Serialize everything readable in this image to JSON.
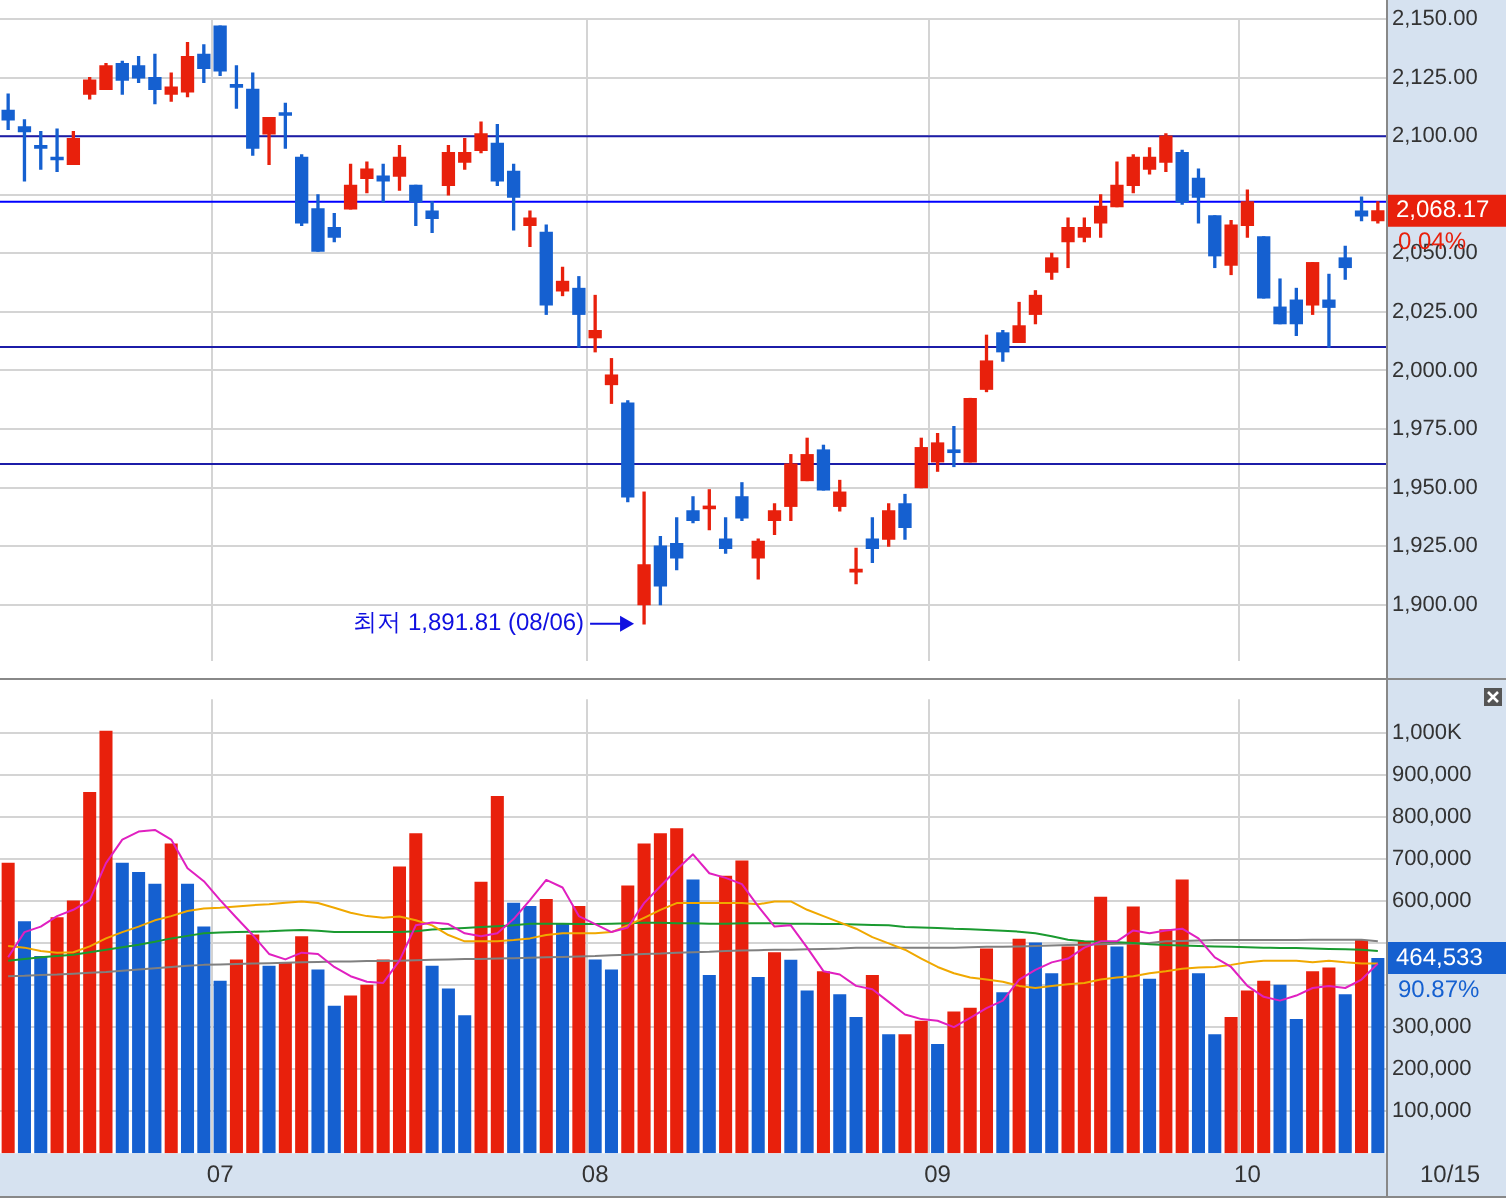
{
  "chart_data": [
    {
      "type": "candlestick",
      "tick_labels": "y",
      "grid": true,
      "categories": [
        null,
        null,
        null,
        null,
        null,
        null,
        null,
        null,
        null,
        null,
        null,
        null,
        null,
        "07",
        null,
        null,
        null,
        null,
        null,
        null,
        null,
        null,
        null,
        null,
        null,
        null,
        null,
        null,
        null,
        null,
        null,
        null,
        null,
        null,
        null,
        null,
        "08",
        null,
        null,
        null,
        null,
        null,
        null,
        null,
        null,
        null,
        null,
        null,
        null,
        null,
        null,
        null,
        null,
        null,
        null,
        null,
        null,
        "09",
        null,
        null,
        null,
        null,
        null,
        null,
        null,
        null,
        null,
        null,
        null,
        null,
        null,
        null,
        null,
        null,
        null,
        null,
        "10",
        null,
        null,
        null,
        null,
        null,
        null,
        null,
        null
      ],
      "ohlc": [
        [
          2111,
          2118,
          2103,
          2107
        ],
        [
          2104,
          2107,
          2081,
          2102
        ],
        [
          2096,
          2102,
          2086,
          2095
        ],
        [
          2091,
          2103,
          2085,
          2090
        ],
        [
          2088,
          2102,
          2088,
          2099
        ],
        [
          2118,
          2125,
          2116,
          2124
        ],
        [
          2120,
          2131,
          2120,
          2130
        ],
        [
          2131,
          2132,
          2118,
          2124
        ],
        [
          2130,
          2134,
          2123,
          2125
        ],
        [
          2125,
          2135,
          2114,
          2120
        ],
        [
          2118,
          2127,
          2115,
          2121
        ],
        [
          2119,
          2140,
          2117,
          2134
        ],
        [
          2135,
          2139,
          2123,
          2129
        ],
        [
          2147,
          2147,
          2126,
          2128
        ],
        [
          2122,
          2130,
          2112,
          2121
        ],
        [
          2120,
          2127,
          2092,
          2095
        ],
        [
          2101,
          2108,
          2088,
          2108
        ],
        [
          2110,
          2114,
          2095,
          2109
        ],
        [
          2091,
          2092,
          2062,
          2063
        ],
        [
          2069,
          2075,
          2051,
          2051
        ],
        [
          2061,
          2067,
          2055,
          2057
        ],
        [
          2069,
          2088,
          2069,
          2079
        ],
        [
          2082,
          2089,
          2076,
          2086
        ],
        [
          2083,
          2088,
          2072,
          2081
        ],
        [
          2083,
          2096,
          2077,
          2091
        ],
        [
          2079,
          2079,
          2062,
          2072
        ],
        [
          2068,
          2072,
          2059,
          2065
        ],
        [
          2079,
          2096,
          2075,
          2093
        ],
        [
          2089,
          2099,
          2086,
          2093
        ],
        [
          2094,
          2106,
          2093,
          2101
        ],
        [
          2097,
          2105,
          2079,
          2081
        ],
        [
          2085,
          2088,
          2060,
          2074
        ],
        [
          2062,
          2068,
          2053,
          2065
        ],
        [
          2059,
          2062,
          2024,
          2028
        ],
        [
          2034,
          2044,
          2032,
          2038
        ],
        [
          2035,
          2040,
          2010,
          2024
        ],
        [
          2014,
          2032,
          2008,
          2017
        ],
        [
          1994,
          2005,
          1986,
          1998
        ],
        [
          1986,
          1987,
          1944,
          1946
        ],
        [
          1900,
          1948,
          1891.81,
          1917
        ],
        [
          1925,
          1929,
          1900,
          1908
        ],
        [
          1926,
          1937,
          1915,
          1920
        ],
        [
          1940,
          1946,
          1935,
          1936
        ],
        [
          1941,
          1949,
          1932,
          1942
        ],
        [
          1928,
          1937,
          1922,
          1924
        ],
        [
          1946,
          1952,
          1936,
          1937
        ],
        [
          1920,
          1928,
          1911,
          1927
        ],
        [
          1936,
          1943,
          1930,
          1940
        ],
        [
          1942,
          1964,
          1936,
          1960
        ],
        [
          1953,
          1971,
          1953,
          1964
        ],
        [
          1966,
          1968,
          1949,
          1949
        ],
        [
          1942,
          1953,
          1940,
          1948
        ],
        [
          1914,
          1924,
          1909,
          1915
        ],
        [
          1928,
          1937,
          1918,
          1924
        ],
        [
          1928,
          1943,
          1925,
          1940
        ],
        [
          1943,
          1947,
          1928,
          1933
        ],
        [
          1950,
          1971,
          1950,
          1967
        ],
        [
          1961,
          1973,
          1957,
          1969
        ],
        [
          1966,
          1976,
          1959,
          1965
        ],
        [
          1961,
          1988,
          1961,
          1988
        ],
        [
          1992,
          2015,
          1991,
          2004
        ],
        [
          2016,
          2017,
          2004,
          2008
        ],
        [
          2012,
          2029,
          2012,
          2019
        ],
        [
          2024,
          2034,
          2020,
          2032
        ],
        [
          2042,
          2050,
          2039,
          2048
        ],
        [
          2055,
          2065,
          2044,
          2061
        ],
        [
          2057,
          2065,
          2055,
          2061
        ],
        [
          2063,
          2075,
          2057,
          2070
        ],
        [
          2070,
          2089,
          2070,
          2079
        ],
        [
          2079,
          2092,
          2076,
          2091
        ],
        [
          2086,
          2095,
          2084,
          2091
        ],
        [
          2089,
          2101,
          2085,
          2100
        ],
        [
          2093,
          2094,
          2071,
          2072
        ],
        [
          2082,
          2086,
          2063,
          2074
        ],
        [
          2066,
          2066,
          2044,
          2049
        ],
        [
          2045,
          2064,
          2041,
          2062
        ],
        [
          2062,
          2077,
          2057,
          2072
        ],
        [
          2057,
          2057,
          2031,
          2031
        ],
        [
          2027,
          2039,
          2020,
          2020
        ],
        [
          2030,
          2035,
          2015,
          2020
        ],
        [
          2028,
          2046,
          2024,
          2046
        ],
        [
          2030,
          2041,
          2010,
          2027
        ],
        [
          2048,
          2053,
          2039,
          2044
        ],
        [
          2068,
          2074,
          2064,
          2066
        ],
        [
          2064,
          2072,
          2063,
          2068.17
        ]
      ],
      "colors": [
        "#1560d0",
        "#1560d0",
        "#1560d0",
        "#1560d0",
        "#e8200c",
        "#e8200c",
        "#e8200c",
        "#1560d0",
        "#1560d0",
        "#1560d0",
        "#e8200c",
        "#e8200c",
        "#1560d0",
        "#1560d0",
        "#1560d0",
        "#1560d0",
        "#e8200c",
        "#1560d0",
        "#1560d0",
        "#1560d0",
        "#1560d0",
        "#e8200c",
        "#e8200c",
        "#1560d0",
        "#e8200c",
        "#1560d0",
        "#1560d0",
        "#e8200c",
        "#e8200c",
        "#e8200c",
        "#1560d0",
        "#1560d0",
        "#e8200c",
        "#1560d0",
        "#e8200c",
        "#1560d0",
        "#e8200c",
        "#e8200c",
        "#1560d0",
        "#e8200c",
        "#1560d0",
        "#1560d0",
        "#1560d0",
        "#e8200c",
        "#1560d0",
        "#1560d0",
        "#e8200c",
        "#e8200c",
        "#e8200c",
        "#e8200c",
        "#1560d0",
        "#e8200c",
        "#e8200c",
        "#1560d0",
        "#e8200c",
        "#1560d0",
        "#e8200c",
        "#e8200c",
        "#1560d0",
        "#e8200c",
        "#e8200c",
        "#1560d0",
        "#e8200c",
        "#e8200c",
        "#e8200c",
        "#e8200c",
        "#e8200c",
        "#e8200c",
        "#e8200c",
        "#e8200c",
        "#e8200c",
        "#e8200c",
        "#1560d0",
        "#1560d0",
        "#1560d0",
        "#e8200c",
        "#e8200c",
        "#1560d0",
        "#1560d0",
        "#1560d0",
        "#e8200c",
        "#1560d0",
        "#1560d0",
        "#1560d0",
        "#e8200c"
      ],
      "ylim": [
        1876,
        2150
      ],
      "yticks": [
        {
          "value": 1900,
          "label": "1,900.00"
        },
        {
          "value": 1925,
          "label": "1,925.00"
        },
        {
          "value": 1950,
          "label": "1,950.00"
        },
        {
          "value": 1975,
          "label": "1,975.00"
        },
        {
          "value": 2000,
          "label": "2,000.00"
        },
        {
          "value": 2025,
          "label": "2,025.00"
        },
        {
          "value": 2050,
          "label": "2,050.00"
        },
        {
          "value": 2075,
          "label": null
        },
        {
          "value": 2100,
          "label": "2,100.00"
        },
        {
          "value": 2125,
          "label": "2,125.00"
        },
        {
          "value": 2150,
          "label": "2,150.00"
        }
      ],
      "ref_lines": [
        {
          "axis": "y",
          "value": 2100,
          "color": "#1c1ca8"
        },
        {
          "axis": "y",
          "value": 2072,
          "color": "#0000ff"
        },
        {
          "axis": "y",
          "value": 2010,
          "color": "#1c1ca8"
        },
        {
          "axis": "y",
          "value": 1960,
          "color": "#1c1ca8"
        }
      ],
      "annotations": [
        "최저 1,891.81 (08/06)",
        "2,068.17",
        "0.04%"
      ]
    },
    {
      "type": "bar",
      "grid": true,
      "categories": [
        null,
        null,
        null,
        null,
        null,
        null,
        null,
        null,
        null,
        null,
        null,
        null,
        null,
        "07",
        null,
        null,
        null,
        null,
        null,
        null,
        null,
        null,
        null,
        null,
        null,
        null,
        null,
        null,
        null,
        null,
        null,
        null,
        null,
        null,
        null,
        null,
        "08",
        null,
        null,
        null,
        null,
        null,
        null,
        null,
        null,
        null,
        null,
        null,
        null,
        null,
        null,
        null,
        null,
        null,
        null,
        null,
        null,
        "09",
        null,
        null,
        null,
        null,
        null,
        null,
        null,
        null,
        null,
        null,
        null,
        null,
        null,
        null,
        null,
        null,
        null,
        null,
        "10",
        null,
        null,
        null,
        null,
        null,
        null,
        null,
        null
      ],
      "series": [
        {
          "type": "bar",
          "values": [
            691000,
            552000,
            469000,
            561000,
            601000,
            859000,
            1005000,
            691000,
            669000,
            641000,
            737000,
            641000,
            539000,
            410000,
            461000,
            520000,
            446000,
            455000,
            516000,
            437000,
            351000,
            375000,
            401000,
            461000,
            682000,
            761000,
            446000,
            392000,
            328000,
            646000,
            850000,
            596000,
            588000,
            605000,
            546000,
            588000,
            461000,
            437000,
            637000,
            737000,
            761000,
            773000,
            651000,
            424000,
            660000,
            696000,
            419000,
            478000,
            460000,
            387000,
            433000,
            378000,
            324000,
            424000,
            283000,
            283000,
            315000,
            260000,
            337000,
            346000,
            487000,
            383000,
            510000,
            501000,
            428000,
            492000,
            505000,
            610000,
            492000,
            587000,
            415000,
            533000,
            651000,
            428000,
            283000,
            324000,
            387000,
            410000,
            401000,
            319000,
            433000,
            442000,
            378000,
            507000,
            464533
          ],
          "colors": [
            "#e8200c",
            "#1560d0",
            "#1560d0",
            "#e8200c",
            "#e8200c",
            "#e8200c",
            "#e8200c",
            "#1560d0",
            "#1560d0",
            "#1560d0",
            "#e8200c",
            "#1560d0",
            "#1560d0",
            "#1560d0",
            "#e8200c",
            "#e8200c",
            "#1560d0",
            "#e8200c",
            "#e8200c",
            "#1560d0",
            "#1560d0",
            "#e8200c",
            "#e8200c",
            "#e8200c",
            "#e8200c",
            "#e8200c",
            "#1560d0",
            "#1560d0",
            "#1560d0",
            "#e8200c",
            "#e8200c",
            "#1560d0",
            "#1560d0",
            "#e8200c",
            "#1560d0",
            "#e8200c",
            "#1560d0",
            "#1560d0",
            "#e8200c",
            "#e8200c",
            "#e8200c",
            "#e8200c",
            "#1560d0",
            "#1560d0",
            "#e8200c",
            "#e8200c",
            "#1560d0",
            "#e8200c",
            "#1560d0",
            "#1560d0",
            "#e8200c",
            "#1560d0",
            "#1560d0",
            "#e8200c",
            "#1560d0",
            "#e8200c",
            "#e8200c",
            "#1560d0",
            "#e8200c",
            "#e8200c",
            "#e8200c",
            "#1560d0",
            "#e8200c",
            "#1560d0",
            "#1560d0",
            "#e8200c",
            "#e8200c",
            "#e8200c",
            "#1560d0",
            "#e8200c",
            "#1560d0",
            "#e8200c",
            "#e8200c",
            "#1560d0",
            "#1560d0",
            "#e8200c",
            "#e8200c",
            "#e8200c",
            "#1560d0",
            "#1560d0",
            "#e8200c",
            "#e8200c",
            "#1560d0",
            "#e8200c",
            "#1560d0"
          ]
        },
        {
          "type": "line",
          "color": "#e020c0",
          "values": [
            466000,
            526000,
            539000,
            564000,
            579000,
            602000,
            690000,
            746000,
            765000,
            769000,
            746000,
            678000,
            647000,
            602000,
            560000,
            519000,
            474000,
            461000,
            477000,
            474000,
            443000,
            421000,
            408000,
            405000,
            458000,
            542000,
            549000,
            545000,
            523000,
            516000,
            523000,
            557000,
            602000,
            650000,
            632000,
            564000,
            545000,
            526000,
            537000,
            595000,
            635000,
            675000,
            711000,
            666000,
            655000,
            640000,
            587000,
            539000,
            542000,
            489000,
            433000,
            425000,
            398000,
            390000,
            360000,
            330000,
            319000,
            315000,
            300000,
            322000,
            345000,
            363000,
            413000,
            436000,
            454000,
            463000,
            489000,
            504000,
            504000,
            530000,
            523000,
            530000,
            534000,
            511000,
            466000,
            443000,
            398000,
            372000,
            363000,
            375000,
            393000,
            398000,
            393000,
            413000,
            451000
          ]
        },
        {
          "type": "line",
          "color": "#f0a800",
          "values": [
            493000,
            489000,
            481000,
            477000,
            478000,
            492000,
            511000,
            526000,
            539000,
            554000,
            564000,
            576000,
            582000,
            584000,
            587000,
            590000,
            592000,
            596000,
            599000,
            595000,
            584000,
            572000,
            564000,
            560000,
            563000,
            554000,
            542000,
            519000,
            504000,
            504000,
            504000,
            507000,
            511000,
            519000,
            523000,
            523000,
            523000,
            526000,
            542000,
            560000,
            579000,
            595000,
            595000,
            595000,
            595000,
            595000,
            592000,
            599000,
            599000,
            579000,
            564000,
            549000,
            534000,
            514000,
            499000,
            484000,
            463000,
            443000,
            428000,
            418000,
            413000,
            408000,
            398000,
            393000,
            398000,
            402000,
            405000,
            413000,
            418000,
            421000,
            428000,
            433000,
            439000,
            442000,
            443000,
            448000,
            454000,
            458000,
            458000,
            458000,
            454000,
            458000,
            454000,
            451000,
            451000
          ]
        },
        {
          "type": "line",
          "color": "#1a9a30",
          "values": [
            458000,
            462000,
            466000,
            469000,
            472000,
            478000,
            484000,
            490000,
            496000,
            503000,
            511000,
            517000,
            523000,
            525000,
            526000,
            527000,
            528000,
            530000,
            531000,
            529000,
            526000,
            526000,
            526000,
            526000,
            526000,
            528000,
            532000,
            534000,
            536000,
            538000,
            540000,
            542000,
            546000,
            546000,
            546000,
            545000,
            545000,
            546000,
            547000,
            548000,
            548000,
            547000,
            547000,
            546000,
            546000,
            547000,
            547000,
            547000,
            546000,
            546000,
            545000,
            545000,
            544000,
            543000,
            542000,
            538000,
            537000,
            536000,
            534000,
            533000,
            531000,
            529000,
            527000,
            523000,
            516000,
            508000,
            504000,
            503000,
            502000,
            500000,
            497000,
            495000,
            494000,
            493000,
            492000,
            491000,
            490000,
            489000,
            488000,
            488000,
            487000,
            486000,
            485000,
            484000,
            481000
          ]
        },
        {
          "type": "line",
          "color": "#808080",
          "values": [
            421000,
            422000,
            424000,
            425000,
            427000,
            429000,
            431000,
            434000,
            437000,
            440000,
            443000,
            446000,
            448000,
            449000,
            450000,
            451000,
            452000,
            453000,
            454000,
            455000,
            456000,
            456000,
            457000,
            457000,
            458000,
            459000,
            460000,
            461000,
            462000,
            462000,
            463000,
            464000,
            465000,
            466000,
            467000,
            468000,
            469000,
            471000,
            472000,
            474000,
            475000,
            477000,
            478000,
            479000,
            481000,
            482000,
            483000,
            484000,
            484000,
            485000,
            486000,
            487000,
            489000,
            489000,
            489000,
            489000,
            489000,
            489000,
            489000,
            490000,
            491000,
            491000,
            492000,
            493000,
            494000,
            495000,
            496000,
            497000,
            498000,
            499000,
            500000,
            504000,
            505000,
            506000,
            507000,
            507000,
            507000,
            507000,
            507000,
            507000,
            508000,
            508000,
            508000,
            508000,
            504000
          ]
        }
      ],
      "ylim": [
        0,
        1080000
      ],
      "yticks": [
        {
          "value": 100000,
          "label": "100,000"
        },
        {
          "value": 200000,
          "label": "200,000"
        },
        {
          "value": 300000,
          "label": "300,000"
        },
        {
          "value": 400000,
          "label": null
        },
        {
          "value": 500000,
          "label": null
        },
        {
          "value": 600000,
          "label": "600,000"
        },
        {
          "value": 700000,
          "label": "700,000"
        },
        {
          "value": 800000,
          "label": "800,000"
        },
        {
          "value": 900000,
          "label": "900,000"
        },
        {
          "value": 1000000,
          "label": "1,000K"
        }
      ],
      "annotations": [
        "464,533",
        "90.87%",
        "10/15"
      ]
    }
  ]
}
